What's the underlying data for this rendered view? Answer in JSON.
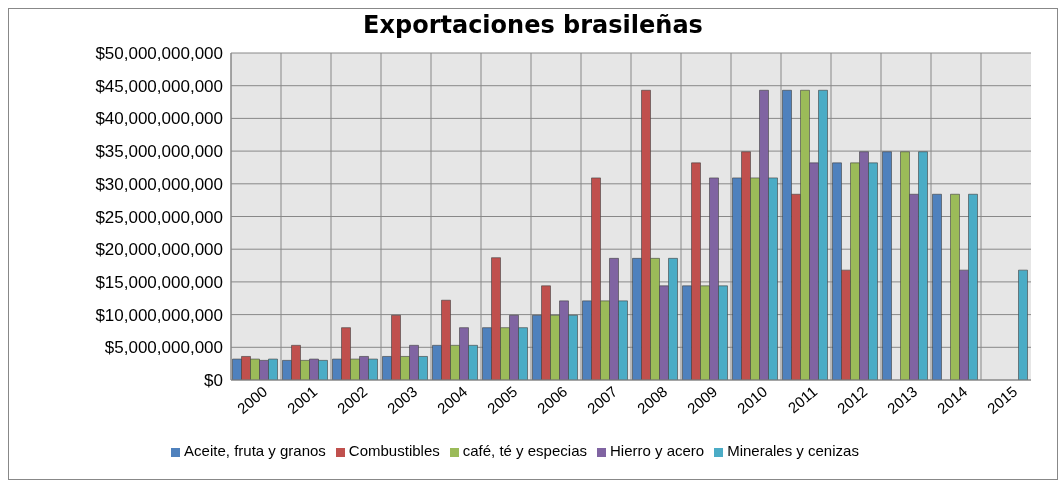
{
  "chart_data": {
    "type": "bar",
    "title": "Exportaciones brasileñas",
    "categories": [
      "2000",
      "2001",
      "2002",
      "2003",
      "2004",
      "2005",
      "2006",
      "2007",
      "2008",
      "2009",
      "2010",
      "2011",
      "2012",
      "2013",
      "2014",
      "2015"
    ],
    "series": [
      {
        "name": "Aceite, fruta y granos",
        "color": "#4f81bd",
        "values": [
          3200000000,
          3000000000,
          3200000000,
          3600000000,
          5300000000,
          8000000000,
          9900000000,
          12100000000,
          18600000000,
          14400000000,
          30900000000,
          44300000000,
          33200000000,
          34900000000,
          28400000000,
          null
        ]
      },
      {
        "name": "Combustibles",
        "color": "#c0504d",
        "values": [
          3600000000,
          5300000000,
          8000000000,
          9900000000,
          12200000000,
          18700000000,
          14400000000,
          30900000000,
          44300000000,
          33200000000,
          34900000000,
          28400000000,
          16800000000,
          null,
          null,
          null
        ]
      },
      {
        "name": "café, té y especias",
        "color": "#9bbb59",
        "values": [
          3200000000,
          3000000000,
          3200000000,
          3600000000,
          5300000000,
          8000000000,
          9900000000,
          12100000000,
          18600000000,
          14400000000,
          30900000000,
          44300000000,
          33200000000,
          34900000000,
          28400000000,
          null
        ]
      },
      {
        "name": "Hierro y acero",
        "color": "#8064a2",
        "values": [
          3000000000,
          3200000000,
          3600000000,
          5300000000,
          8000000000,
          9900000000,
          12100000000,
          18600000000,
          14400000000,
          30900000000,
          44300000000,
          33200000000,
          34900000000,
          28400000000,
          16800000000,
          null
        ]
      },
      {
        "name": "Minerales y cenizas",
        "color": "#4bacc6",
        "values": [
          3200000000,
          3000000000,
          3200000000,
          3600000000,
          5300000000,
          8000000000,
          9900000000,
          12100000000,
          18600000000,
          14400000000,
          30900000000,
          44300000000,
          33200000000,
          34900000000,
          28400000000,
          16800000000
        ]
      }
    ],
    "ylim": [
      0,
      50000000000
    ],
    "yticks": [
      {
        "value": 0,
        "label": "$0"
      },
      {
        "value": 5000000000,
        "label": "$5,000,000,000"
      },
      {
        "value": 10000000000,
        "label": "$10,000,000,000"
      },
      {
        "value": 15000000000,
        "label": "$15,000,000,000"
      },
      {
        "value": 20000000000,
        "label": "$20,000,000,000"
      },
      {
        "value": 25000000000,
        "label": "$25,000,000,000"
      },
      {
        "value": 30000000000,
        "label": "$30,000,000,000"
      },
      {
        "value": 35000000000,
        "label": "$35,000,000,000"
      },
      {
        "value": 40000000000,
        "label": "$40,000,000,000"
      },
      {
        "value": 45000000000,
        "label": "$45,000,000,000"
      },
      {
        "value": 50000000000,
        "label": "$50,000,000,000"
      }
    ],
    "grid": true,
    "legend": "bottom"
  }
}
